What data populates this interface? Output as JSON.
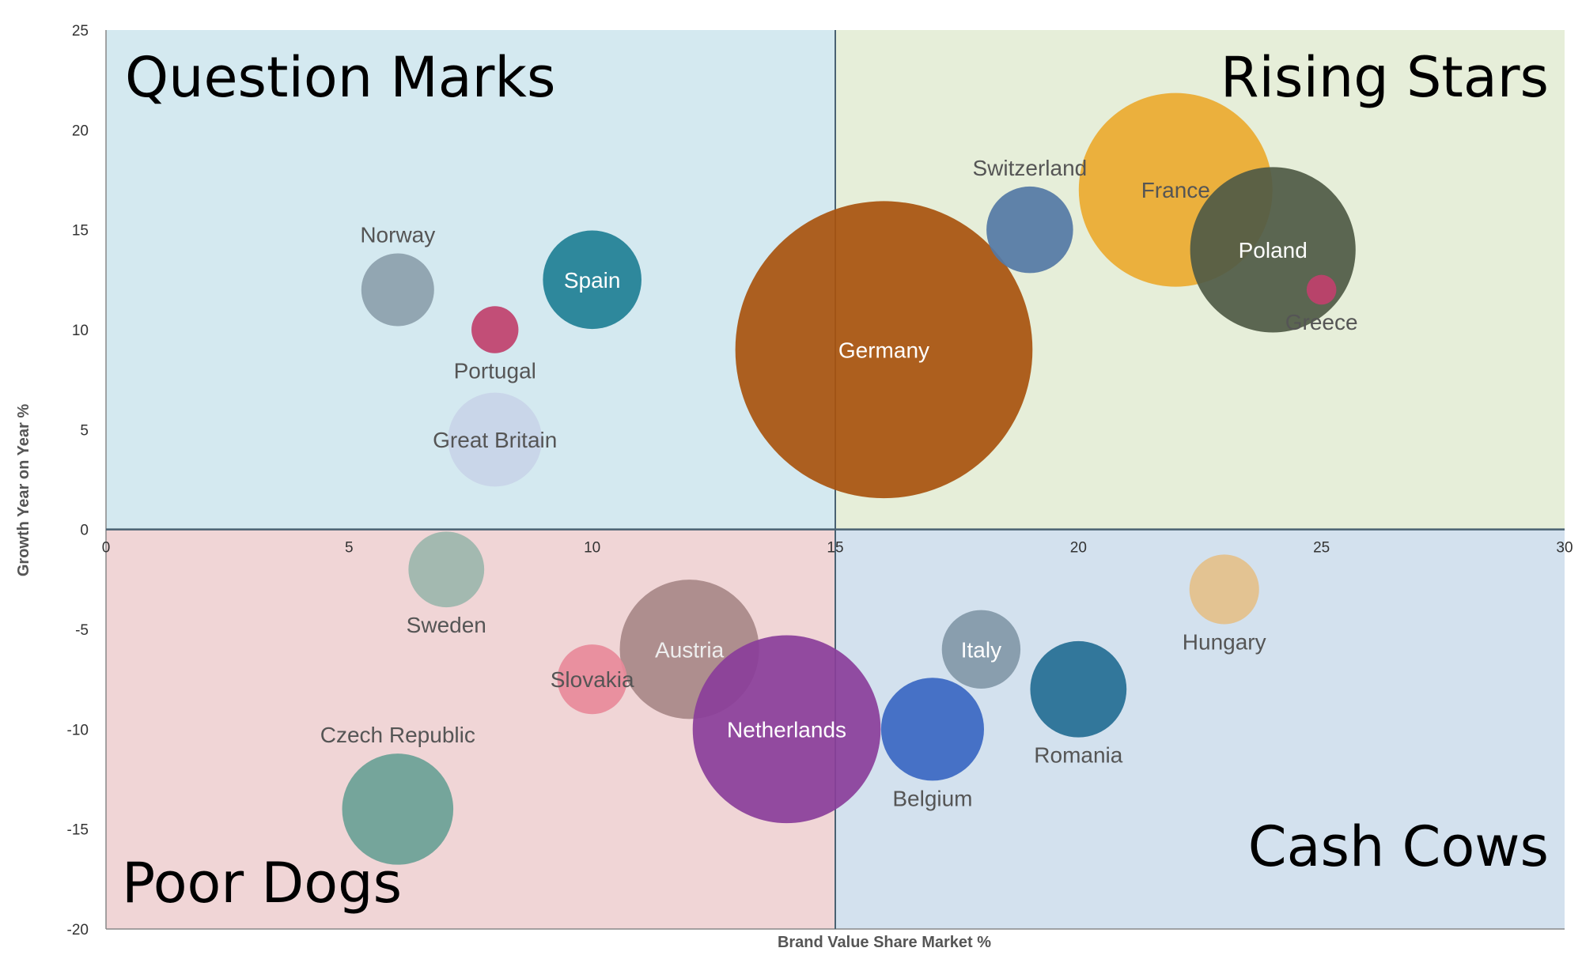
{
  "chart_data": {
    "type": "bubble",
    "title": "",
    "xlabel": "Brand Value Share  Market %",
    "ylabel": "Growth Year on Year %",
    "xlim": [
      0,
      30
    ],
    "ylim": [
      -20,
      25
    ],
    "x_ticks": [
      0,
      5,
      10,
      15,
      20,
      25,
      30
    ],
    "y_ticks": [
      -20,
      -15,
      -10,
      -5,
      0,
      5,
      10,
      15,
      20,
      25
    ],
    "quadrant_split": {
      "x": 15,
      "y": 0
    },
    "quadrants": [
      {
        "name": "Question Marks",
        "region": "top-left",
        "fill": "#d4e9f0"
      },
      {
        "name": "Rising Stars",
        "region": "top-right",
        "fill": "#e6eed9"
      },
      {
        "name": "Poor Dogs",
        "region": "bottom-left",
        "fill": "#f0d5d6"
      },
      {
        "name": "Cash Cows",
        "region": "bottom-right",
        "fill": "#d3e1ee"
      }
    ],
    "points": [
      {
        "name": "Norway",
        "x": 6,
        "y": 12,
        "size": 1.2,
        "color": "#8ca0ac",
        "label_color": "#555555",
        "label_pos": "above"
      },
      {
        "name": "Spain",
        "x": 10,
        "y": 12.5,
        "size": 2.2,
        "color": "#1f7f95",
        "label_color": "#ffffff",
        "label_pos": "center"
      },
      {
        "name": "Portugal",
        "x": 8,
        "y": 10,
        "size": 0.5,
        "color": "#c0406c",
        "label_color": "#555555",
        "label_pos": "below"
      },
      {
        "name": "Great Britain",
        "x": 8,
        "y": 4.5,
        "size": 2.0,
        "color": "#c8d4e8",
        "label_color": "#555555",
        "label_pos": "center"
      },
      {
        "name": "Germany",
        "x": 16,
        "y": 9,
        "size": 20,
        "color": "#a8520e",
        "label_color": "#ffffff",
        "label_pos": "center"
      },
      {
        "name": "Switzerland",
        "x": 19,
        "y": 15,
        "size": 1.7,
        "color": "#5478a5",
        "label_color": "#555555",
        "label_pos": "above"
      },
      {
        "name": "France",
        "x": 22,
        "y": 17,
        "size": 8.5,
        "color": "#ebaa30",
        "label_color": "#555555",
        "label_pos": "center"
      },
      {
        "name": "Poland",
        "x": 24,
        "y": 14,
        "size": 6.2,
        "color": "#4f5a45",
        "label_color": "#ffffff",
        "label_pos": "center"
      },
      {
        "name": "Greece",
        "x": 25,
        "y": 12,
        "size": 0.2,
        "color": "#c0406c",
        "label_color": "#555555",
        "label_pos": "below"
      },
      {
        "name": "Sweden",
        "x": 7,
        "y": -2,
        "size": 1.3,
        "color": "#9cb6ad",
        "label_color": "#555555",
        "label_pos": "below"
      },
      {
        "name": "Austria",
        "x": 12,
        "y": -6,
        "size": 4.4,
        "color": "#a88888",
        "label_color": "#eeeeee",
        "label_pos": "center"
      },
      {
        "name": "Slovakia",
        "x": 10,
        "y": -7.5,
        "size": 1.1,
        "color": "#e88a9a",
        "label_color": "#555555",
        "label_pos": "center"
      },
      {
        "name": "Netherlands",
        "x": 14,
        "y": -10,
        "size": 8.0,
        "color": "#8a3e9a",
        "label_color": "#ffffff",
        "label_pos": "center"
      },
      {
        "name": "Czech Republic",
        "x": 6,
        "y": -14,
        "size": 2.8,
        "color": "#6aa196",
        "label_color": "#555555",
        "label_pos": "above"
      },
      {
        "name": "Italy",
        "x": 18,
        "y": -6,
        "size": 1.4,
        "color": "#8298a8",
        "label_color": "#ffffff",
        "label_pos": "center"
      },
      {
        "name": "Belgium",
        "x": 17,
        "y": -10,
        "size": 2.4,
        "color": "#3a67c2",
        "label_color": "#555555",
        "label_pos": "below"
      },
      {
        "name": "Romania",
        "x": 20,
        "y": -8,
        "size": 2.1,
        "color": "#246e94",
        "label_color": "#555555",
        "label_pos": "below"
      },
      {
        "name": "Hungary",
        "x": 23,
        "y": -3,
        "size": 1.1,
        "color": "#e4c08a",
        "label_color": "#555555",
        "label_pos": "below"
      }
    ]
  }
}
